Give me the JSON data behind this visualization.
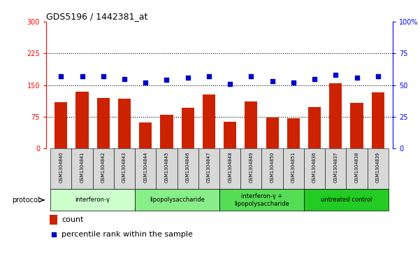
{
  "title": "GDS5196 / 1442381_at",
  "samples": [
    "GSM1304840",
    "GSM1304841",
    "GSM1304842",
    "GSM1304843",
    "GSM1304844",
    "GSM1304845",
    "GSM1304846",
    "GSM1304847",
    "GSM1304848",
    "GSM1304849",
    "GSM1304850",
    "GSM1304851",
    "GSM1304836",
    "GSM1304837",
    "GSM1304838",
    "GSM1304839"
  ],
  "counts": [
    110,
    135,
    120,
    118,
    62,
    80,
    97,
    128,
    63,
    112,
    73,
    71,
    98,
    155,
    108,
    132
  ],
  "percentile_ranks": [
    57,
    57,
    57,
    55,
    52,
    54,
    56,
    57,
    51,
    57,
    53,
    52,
    55,
    58,
    56,
    57
  ],
  "bar_color": "#cc2200",
  "dot_color": "#0000cc",
  "left_ylim": [
    0,
    300
  ],
  "left_yticks": [
    0,
    75,
    150,
    225,
    300
  ],
  "right_ylim": [
    0,
    100
  ],
  "right_yticks": [
    0,
    25,
    50,
    75,
    100
  ],
  "right_yticklabels": [
    "0",
    "25",
    "50",
    "75",
    "100%"
  ],
  "hlines": [
    75,
    150,
    225
  ],
  "groups": [
    {
      "label": "interferon-γ",
      "start": 0,
      "end": 4,
      "color": "#ccffcc"
    },
    {
      "label": "lipopolysaccharide",
      "start": 4,
      "end": 8,
      "color": "#88ee88"
    },
    {
      "label": "interferon-γ +\nlipopolysaccharide",
      "start": 8,
      "end": 12,
      "color": "#55dd55"
    },
    {
      "label": "untreated control",
      "start": 12,
      "end": 16,
      "color": "#22cc22"
    }
  ],
  "protocol_label": "protocol",
  "legend_count_label": "count",
  "legend_pct_label": "percentile rank within the sample",
  "background_color": "#ffffff",
  "sample_box_color": "#d8d8d8",
  "xlim": [
    -0.7,
    15.7
  ]
}
